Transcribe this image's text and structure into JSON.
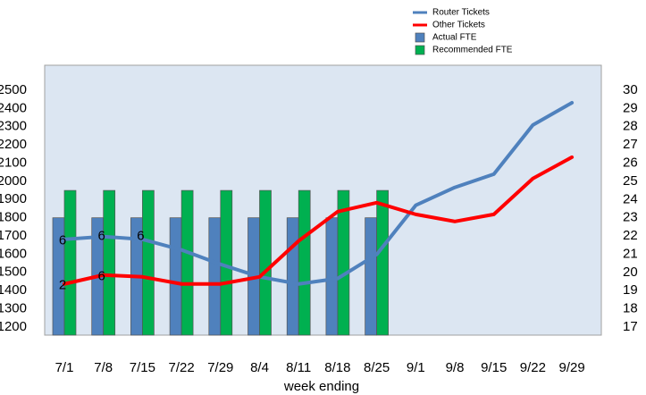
{
  "chart_data": {
    "type": "bar-line",
    "x_label": "week ending",
    "categories": [
      "7/1",
      "7/8",
      "7/15",
      "7/22",
      "7/29",
      "8/4",
      "8/11",
      "8/18",
      "8/25",
      "9/1",
      "9/8",
      "9/15",
      "9/22",
      "9/29"
    ],
    "series": [
      {
        "name": "Router Tickets",
        "type": "line",
        "color": "#4f81bd",
        "axis": "y",
        "values": [
          1681,
          1696,
          1681,
          1623,
          1544,
          1475,
          1436,
          1466,
          1598,
          1868,
          1966,
          2039,
          2309,
          2431
        ]
      },
      {
        "name": "Other Tickets",
        "type": "line",
        "color": "#ff0000",
        "axis": "y",
        "values": [
          1436,
          1485,
          1475,
          1436,
          1436,
          1475,
          1672,
          1833,
          1882,
          1818,
          1779,
          1818,
          2015,
          2132
        ]
      },
      {
        "name": "Actual FTE",
        "type": "bar",
        "color": "#4f81bd",
        "axis": "y2",
        "values": [
          23,
          23,
          23,
          23,
          23,
          23,
          23,
          23,
          23,
          null,
          null,
          null,
          null,
          null
        ]
      },
      {
        "name": "Recommended FTE",
        "type": "bar",
        "color": "#00b050",
        "axis": "y2",
        "values": [
          24.5,
          24.5,
          24.5,
          24.5,
          24.5,
          24.5,
          24.5,
          24.5,
          24.5,
          null,
          null,
          null,
          null,
          null
        ]
      }
    ],
    "annotations": [
      {
        "text": "6",
        "x": "7/1",
        "y": 1672
      },
      {
        "text": "6",
        "x": "7/8",
        "y": 1696
      },
      {
        "text": "6",
        "x": "7/15",
        "y": 1696
      },
      {
        "text": "2",
        "x": "7/1",
        "y": 1427
      },
      {
        "text": "6",
        "x": "7/8",
        "y": 1476
      }
    ],
    "ylim": [
      1155,
      2637
    ],
    "yticks": [
      1200,
      1300,
      1400,
      1500,
      1600,
      1700,
      1800,
      1900,
      2000,
      2100,
      2200,
      2300,
      2400,
      2500
    ],
    "y2lim": [
      16.56,
      31.37
    ],
    "y2ticks": [
      17,
      18,
      19,
      20,
      21,
      22,
      23,
      24,
      25,
      26,
      27,
      28,
      29,
      30
    ]
  }
}
